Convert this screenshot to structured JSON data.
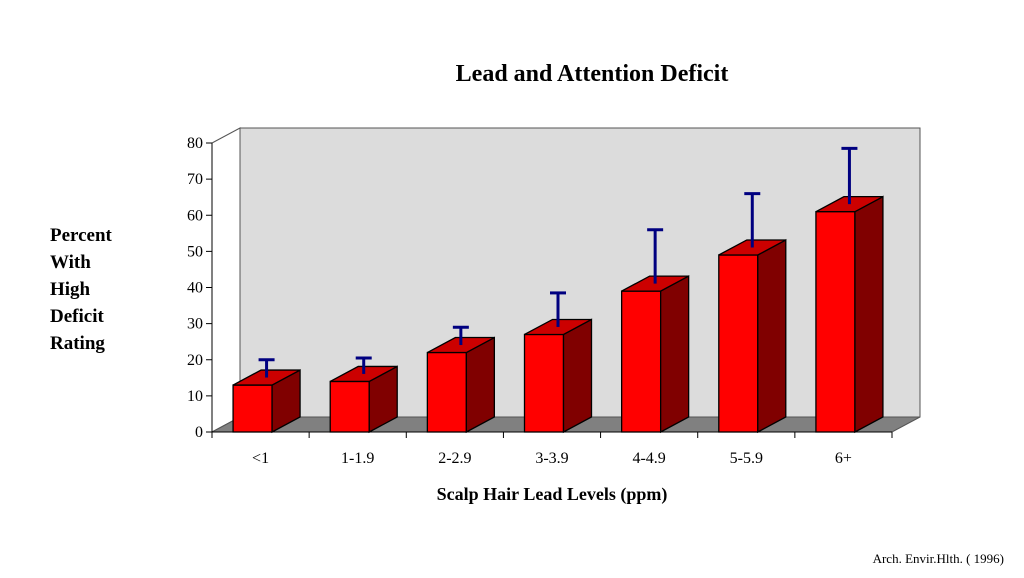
{
  "chart_data": {
    "type": "bar",
    "title": "Lead and Attention Deficit",
    "xlabel": "Scalp Hair Lead Levels (ppm)",
    "ylabel_lines": [
      "Percent",
      "With",
      "High",
      "Deficit",
      "Rating"
    ],
    "categories": [
      "<1",
      "1-1.9",
      "2-2.9",
      "3-3.9",
      "4-4.9",
      "5-5.9",
      "6+"
    ],
    "values": [
      13,
      14,
      22,
      27,
      39,
      49,
      61
    ],
    "error_upper": [
      20,
      20.5,
      29,
      38.5,
      56,
      66,
      78.5
    ],
    "ylim": [
      0,
      80
    ],
    "yticks": [
      0,
      10,
      20,
      30,
      40,
      50,
      60,
      70,
      80
    ],
    "bar_color": "#ff0000",
    "bar_side_color": "#800000",
    "error_color": "#000080",
    "wall_color": "#dcdcdc",
    "floor_color": "#808080",
    "grid": false,
    "legend": "none"
  },
  "source": "Arch. Envir.Hlth. ( 1996)"
}
